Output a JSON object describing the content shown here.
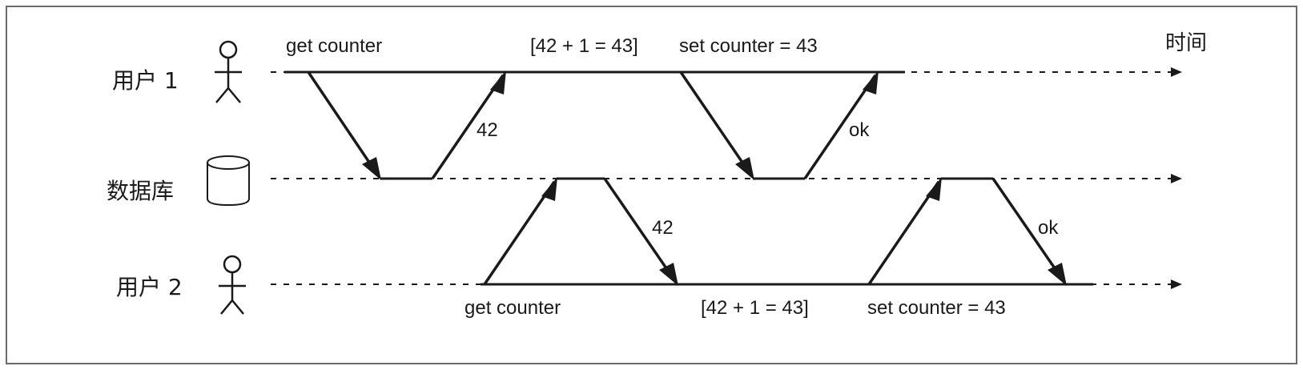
{
  "time_label": "时间",
  "rows": {
    "user1": "用户 1",
    "database": "数据库",
    "user2": "用户 2"
  },
  "icons": {
    "user1": "person-icon",
    "database": "database-cylinder-icon",
    "user2": "person-icon"
  },
  "user1_labels": {
    "get": "get counter",
    "compute": "[42 + 1 = 43]",
    "set": "set counter = 43"
  },
  "user2_labels": {
    "get": "get counter",
    "compute": "[42 + 1 = 43]",
    "set": "set counter = 43"
  },
  "responses": {
    "u1_read": "42",
    "u1_write": "ok",
    "u2_read": "42",
    "u2_write": "ok"
  },
  "colors": {
    "line": "#1a1a1a",
    "border": "#6b6b6b"
  }
}
